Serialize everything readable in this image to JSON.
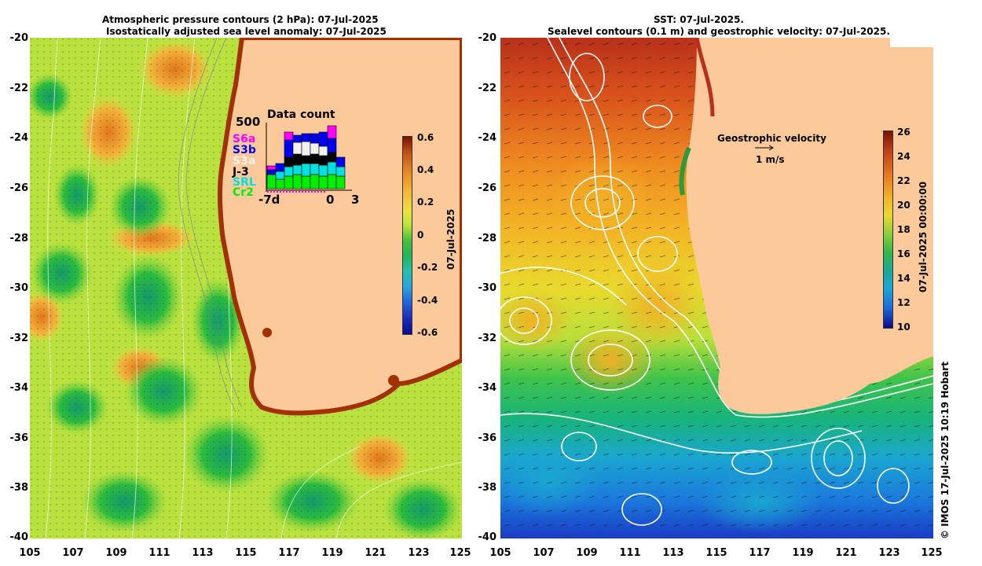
{
  "left_panel": {
    "title_line1": "Atmospheric pressure contours (2 hPa): 07-Jul-2025",
    "title_line2": "Isostatically adjusted sea level anomaly: 07-Jul-2025",
    "colorbar_ticks": [
      "0.6",
      "0.4",
      "0.2",
      "0",
      "-0.2",
      "-0.4",
      "-0.6"
    ],
    "colorbar_label": "07-Jul-2025",
    "data_count": {
      "title": "Data count",
      "max_label": "500",
      "satellites": [
        {
          "name": "S6a",
          "color": "#ff00ff"
        },
        {
          "name": "S3b",
          "color": "#0000ee"
        },
        {
          "name": "S3a",
          "color": "#f0f0f0"
        },
        {
          "name": "J-3",
          "color": "#000000"
        },
        {
          "name": "SRL",
          "color": "#00e0e0"
        },
        {
          "name": "Cr2",
          "color": "#00ee00"
        }
      ],
      "axis_labels": [
        "-7d",
        "0",
        "3"
      ]
    }
  },
  "right_panel": {
    "title_line1": "SST: 07-Jul-2025.",
    "title_line2": "Sealevel contours (0.1 m) and geostrophic velocity: 07-Jul-2025.",
    "colorbar_ticks": [
      "26",
      "24",
      "22",
      "20",
      "18",
      "16",
      "14",
      "12",
      "10"
    ],
    "colorbar_label": "07-Jul-2025 00:00:00",
    "legend_title": "Geostrophic velocity",
    "legend_scale": "1 m/s"
  },
  "axes": {
    "lat_ticks": [
      "-20",
      "-22",
      "-24",
      "-26",
      "-28",
      "-30",
      "-32",
      "-34",
      "-36",
      "-38",
      "-40"
    ],
    "lon_ticks": [
      "105",
      "107",
      "109",
      "111",
      "113",
      "115",
      "117",
      "119",
      "121",
      "123",
      "125"
    ]
  },
  "credit": "© IMOS 17-Jul-2025 10:19 Hobart",
  "colors": {
    "land": "#fcc99a",
    "sla_high": "#a33000",
    "sla_mid": "#c9e844",
    "sla_low": "#1ea84a",
    "sst_warm": "#c8401a",
    "sst_mid": "#f0c020",
    "sst_cool": "#1a9fd8"
  }
}
